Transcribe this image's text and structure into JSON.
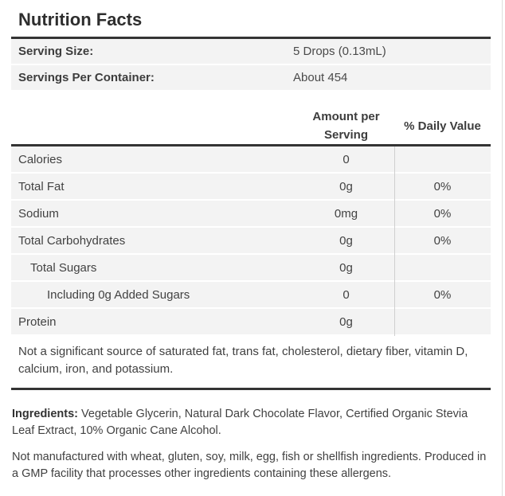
{
  "title": "Nutrition Facts",
  "serving_info": [
    {
      "label": "Serving Size:",
      "value": "5 Drops (0.13mL)"
    },
    {
      "label": "Servings Per Container:",
      "value": "About 454"
    }
  ],
  "table": {
    "amount_header_line1": "Amount per",
    "amount_header_line2": "Serving",
    "daily_value_header": "% Daily Value",
    "rows": [
      {
        "label": "Calories",
        "amount": "0",
        "dv": "",
        "indent": 0
      },
      {
        "label": "Total Fat",
        "amount": "0g",
        "dv": "0%",
        "indent": 0
      },
      {
        "label": "Sodium",
        "amount": "0mg",
        "dv": "0%",
        "indent": 0
      },
      {
        "label": "Total Carbohydrates",
        "amount": "0g",
        "dv": "0%",
        "indent": 0
      },
      {
        "label": "Total Sugars",
        "amount": "0g",
        "dv": "",
        "indent": 1
      },
      {
        "label": "Including 0g Added Sugars",
        "amount": "0",
        "dv": "0%",
        "indent": 2
      },
      {
        "label": "Protein",
        "amount": "0g",
        "dv": "",
        "indent": 0
      }
    ]
  },
  "footnote": "Not a significant source of saturated fat, trans fat, cholesterol, dietary fiber, vitamin D, calcium, iron, and potassium.",
  "ingredients": {
    "label": "Ingredients:",
    "text": "Vegetable Glycerin, Natural Dark Chocolate Flavor, Certified Organic Stevia Leaf Extract, 10% Organic Cane Alcohol."
  },
  "allergen_note": "Not manufactured with wheat, gluten, soy, milk, egg, fish or shellfish ingredients. Produced in a GMP facility that processes other ingredients containing these allergens.",
  "colors": {
    "row_bg": "#f3f3f3",
    "rule_dark": "#343434",
    "column_divider": "#cfcfcf",
    "page_border": "#dddddd"
  }
}
